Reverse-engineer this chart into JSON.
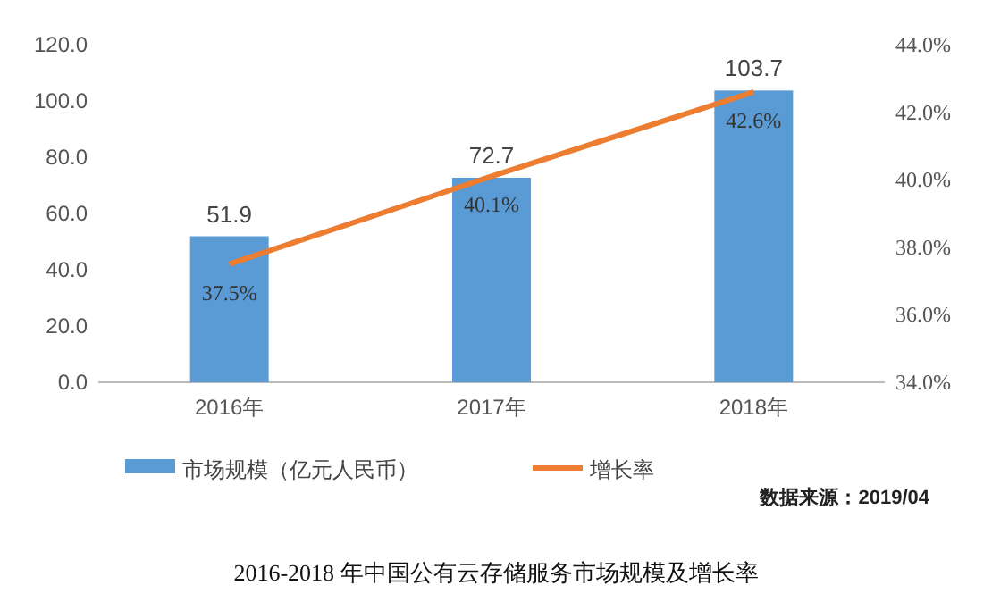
{
  "chart_data": {
    "type": "bar",
    "title": "2016-2018 年中国公有云存储服务市场规模及增长率",
    "categories": [
      "2016年",
      "2017年",
      "2018年"
    ],
    "series": [
      {
        "name": "市场规模（亿元人民币）",
        "color": "#5b9bd5",
        "values": [
          51.9,
          72.7,
          103.7
        ],
        "value_labels": [
          "51.9",
          "72.7",
          "103.7"
        ]
      },
      {
        "name": "增长率",
        "type": "line",
        "axis": "y2",
        "color": "#ed7d31",
        "values": [
          37.5,
          40.1,
          42.6
        ],
        "value_labels": [
          "37.5%",
          "40.1%",
          "42.6%"
        ]
      }
    ],
    "ylim": [
      0,
      120
    ],
    "yticks": [
      {
        "value": 0,
        "label": "0.0"
      },
      {
        "value": 20,
        "label": "20.0"
      },
      {
        "value": 40,
        "label": "40.0"
      },
      {
        "value": 60,
        "label": "60.0"
      },
      {
        "value": 80,
        "label": "80.0"
      },
      {
        "value": 100,
        "label": "100.0"
      },
      {
        "value": 120,
        "label": "120.0"
      }
    ],
    "y2lim": [
      34,
      44
    ],
    "y2ticks": [
      {
        "value": 34,
        "label": "34.0%"
      },
      {
        "value": 36,
        "label": "36.0%"
      },
      {
        "value": 38,
        "label": "38.0%"
      },
      {
        "value": 40,
        "label": "40.0%"
      },
      {
        "value": 42,
        "label": "42.0%"
      },
      {
        "value": 44,
        "label": "44.0%"
      }
    ],
    "legend": "bottom",
    "annotations": [
      "数据来源：2019/04"
    ]
  }
}
